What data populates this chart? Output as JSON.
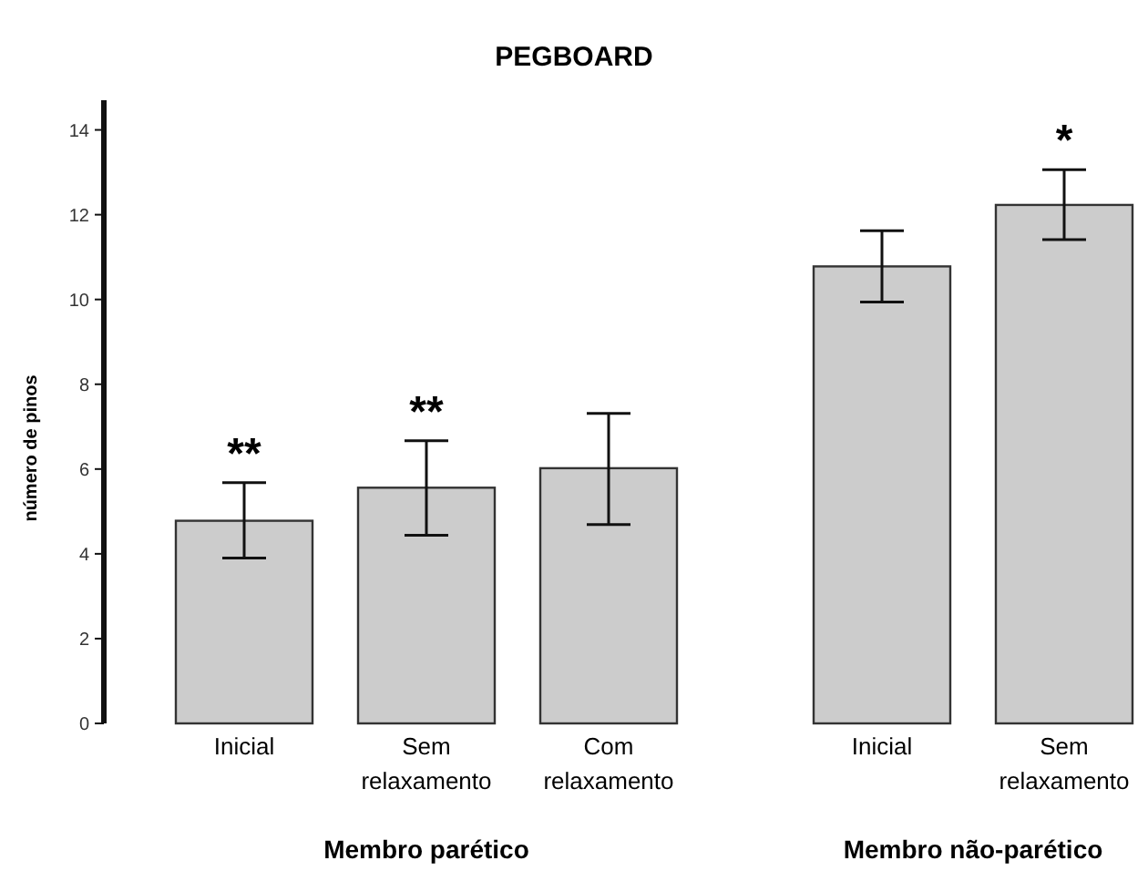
{
  "chart_data": {
    "type": "bar",
    "title": "PEGBOARD",
    "ylabel": "número de pinos",
    "categories": [
      "Inicial",
      "Sem relaxamento",
      "Com relaxamento",
      null,
      "Inicial",
      "Sem relaxamento"
    ],
    "values": [
      4.78,
      5.56,
      6.02,
      null,
      10.78,
      12.23
    ],
    "errors": [
      [
        3.9,
        5.68
      ],
      [
        4.44,
        6.67
      ],
      [
        4.69,
        7.31
      ],
      null,
      [
        9.94,
        11.62
      ],
      [
        11.41,
        13.06
      ]
    ],
    "value_labels": [
      "**",
      "**",
      null,
      null,
      null,
      "*"
    ],
    "color": "#cccccc",
    "ylim": [
      0,
      14.7
    ],
    "yticks": [
      0,
      2,
      4,
      6,
      8,
      10,
      12,
      14
    ],
    "grid": false,
    "annotations": [
      "Membro parético",
      "Membro não-parético"
    ]
  }
}
